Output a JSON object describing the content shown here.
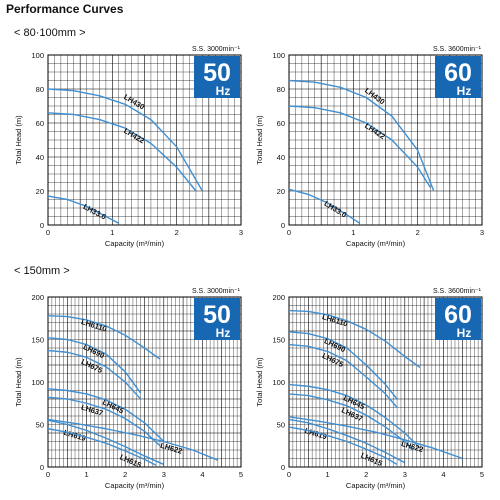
{
  "page": {
    "title": "Performance Curves",
    "sections": [
      "< 80·100mm >",
      "< 150mm >"
    ]
  },
  "colors": {
    "curve": "#3f8fd2",
    "badge": "#1767b3",
    "grid": "#000000",
    "text": "#111111"
  },
  "chart_data": [
    {
      "type": "line",
      "section": "< 80·100mm >",
      "badge": {
        "value": "50",
        "unit": "Hz"
      },
      "speed_label": "S.S. 3000min⁻¹",
      "xlabel": "Capacity (m³/min)",
      "ylabel": "Total Head (m)",
      "xlim": [
        0,
        3
      ],
      "ylim": [
        0,
        100
      ],
      "xticks": [
        0,
        1,
        2,
        3
      ],
      "yticks": [
        0,
        20,
        40,
        60,
        80,
        100
      ],
      "grid": true,
      "series": [
        {
          "name": "LH430",
          "x": [
            0,
            0.4,
            0.8,
            1.2,
            1.6,
            2.0,
            2.4
          ],
          "y": [
            80,
            79,
            76,
            71,
            62,
            46,
            20
          ]
        },
        {
          "name": "LH422",
          "x": [
            0,
            0.4,
            0.8,
            1.2,
            1.6,
            2.0,
            2.3
          ],
          "y": [
            66,
            65,
            62,
            57,
            48,
            34,
            20
          ]
        },
        {
          "name": "LH33.0",
          "x": [
            0,
            0.3,
            0.6,
            0.9,
            1.1
          ],
          "y": [
            17,
            15,
            11,
            5,
            1
          ]
        }
      ]
    },
    {
      "type": "line",
      "section": "< 80·100mm >",
      "badge": {
        "value": "60",
        "unit": "Hz"
      },
      "speed_label": "S.S. 3600min⁻¹",
      "xlabel": "Capacity (m³/min)",
      "ylabel": "Total Head (m)",
      "xlim": [
        0,
        3
      ],
      "ylim": [
        0,
        100
      ],
      "xticks": [
        0,
        1,
        2,
        3
      ],
      "yticks": [
        0,
        20,
        40,
        60,
        80,
        100
      ],
      "grid": true,
      "series": [
        {
          "name": "LH430",
          "x": [
            0,
            0.4,
            0.8,
            1.2,
            1.6,
            2.0,
            2.25
          ],
          "y": [
            85,
            84,
            81,
            75,
            64,
            44,
            20
          ]
        },
        {
          "name": "LH422",
          "x": [
            0,
            0.4,
            0.8,
            1.2,
            1.6,
            2.0,
            2.2
          ],
          "y": [
            70,
            69,
            66,
            60,
            50,
            34,
            22
          ]
        },
        {
          "name": "LH33.0",
          "x": [
            0,
            0.3,
            0.6,
            0.9,
            1.1
          ],
          "y": [
            21,
            18,
            13,
            6,
            1
          ]
        }
      ]
    },
    {
      "type": "line",
      "section": "< 150mm >",
      "badge": {
        "value": "50",
        "unit": "Hz"
      },
      "speed_label": "S.S. 3000min⁻¹",
      "xlabel": "Capacity (m³/min)",
      "ylabel": "Total Head (m)",
      "xlim": [
        0,
        5
      ],
      "ylim": [
        0,
        200
      ],
      "xticks": [
        0,
        1,
        2,
        3,
        4,
        5
      ],
      "yticks": [
        0,
        50,
        100,
        150,
        200
      ],
      "grid": true,
      "series": [
        {
          "name": "LH6110",
          "x": [
            0,
            0.5,
            1.0,
            1.5,
            2.0,
            2.5,
            2.9
          ],
          "y": [
            178,
            177,
            173,
            166,
            155,
            140,
            127
          ]
        },
        {
          "name": "LH690",
          "x": [
            0,
            0.5,
            1.0,
            1.5,
            2.0,
            2.4
          ],
          "y": [
            152,
            150,
            144,
            133,
            112,
            87
          ]
        },
        {
          "name": "LH675",
          "x": [
            0,
            0.5,
            1.0,
            1.5,
            2.0,
            2.4
          ],
          "y": [
            137,
            135,
            129,
            118,
            100,
            80
          ]
        },
        {
          "name": "LH645",
          "x": [
            0,
            0.5,
            1.0,
            1.5,
            2.0,
            2.5,
            3.0
          ],
          "y": [
            92,
            90,
            86,
            79,
            68,
            52,
            30
          ]
        },
        {
          "name": "LH637",
          "x": [
            0,
            0.5,
            1.0,
            1.5,
            2.0,
            2.5,
            2.9
          ],
          "y": [
            82,
            80,
            75,
            68,
            57,
            42,
            25
          ]
        },
        {
          "name": "LH619",
          "x": [
            0,
            0.5,
            1.0,
            1.5,
            2.0,
            2.5,
            3.0
          ],
          "y": [
            55,
            50,
            43,
            34,
            24,
            13,
            3
          ]
        },
        {
          "name": "LH615",
          "x": [
            0,
            0.5,
            1.0,
            1.5,
            2.0,
            2.5,
            2.8
          ],
          "y": [
            45,
            41,
            35,
            28,
            19,
            9,
            2
          ]
        },
        {
          "name": "LH622",
          "x": [
            0,
            0.75,
            1.5,
            2.25,
            3.0,
            3.75,
            4.4
          ],
          "y": [
            56,
            51,
            45,
            38,
            30,
            20,
            8
          ]
        }
      ]
    },
    {
      "type": "line",
      "section": "< 150mm >",
      "badge": {
        "value": "60",
        "unit": "Hz"
      },
      "speed_label": "S.S. 3600min⁻¹",
      "xlabel": "Capacity (m³/min)",
      "ylabel": "Total Head (m)",
      "xlim": [
        0,
        5
      ],
      "ylim": [
        0,
        200
      ],
      "xticks": [
        0,
        1,
        2,
        3,
        4,
        5
      ],
      "yticks": [
        0,
        50,
        100,
        150,
        200
      ],
      "grid": true,
      "series": [
        {
          "name": "LH6110",
          "x": [
            0,
            0.5,
            1.0,
            1.5,
            2.0,
            2.5,
            3.0,
            3.4
          ],
          "y": [
            184,
            183,
            179,
            172,
            162,
            148,
            130,
            117
          ]
        },
        {
          "name": "LH690",
          "x": [
            0,
            0.5,
            1.0,
            1.5,
            2.0,
            2.5,
            2.8
          ],
          "y": [
            159,
            157,
            151,
            140,
            120,
            97,
            80
          ]
        },
        {
          "name": "LH675",
          "x": [
            0,
            0.5,
            1.0,
            1.5,
            2.0,
            2.5,
            2.8
          ],
          "y": [
            144,
            142,
            136,
            125,
            106,
            86,
            70
          ]
        },
        {
          "name": "LH645",
          "x": [
            0,
            0.5,
            1.0,
            1.5,
            2.0,
            2.5,
            3.0,
            3.4
          ],
          "y": [
            97,
            95,
            91,
            84,
            73,
            58,
            40,
            22
          ]
        },
        {
          "name": "LH637",
          "x": [
            0,
            0.5,
            1.0,
            1.5,
            2.0,
            2.5,
            3.0,
            3.2
          ],
          "y": [
            86,
            84,
            79,
            72,
            61,
            47,
            30,
            20
          ]
        },
        {
          "name": "LH619",
          "x": [
            0,
            0.5,
            1.0,
            1.5,
            2.0,
            2.5,
            3.0
          ],
          "y": [
            56,
            52,
            45,
            37,
            28,
            17,
            5
          ]
        },
        {
          "name": "LH615",
          "x": [
            0,
            0.5,
            1.0,
            1.5,
            2.0,
            2.5,
            2.8
          ],
          "y": [
            47,
            43,
            37,
            30,
            21,
            11,
            3
          ]
        },
        {
          "name": "LH622",
          "x": [
            0,
            0.75,
            1.5,
            2.25,
            3.0,
            3.75,
            4.5
          ],
          "y": [
            59,
            54,
            48,
            41,
            32,
            22,
            10
          ]
        }
      ]
    }
  ]
}
